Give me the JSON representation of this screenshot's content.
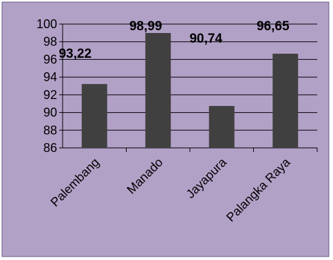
{
  "colors": {
    "background": "#b2a1c7",
    "plot_background": "#b2a1c7",
    "bar": "#404040",
    "gridline": "#000000",
    "text": "#000000"
  },
  "chart_data": {
    "type": "bar",
    "categories": [
      "Palembang",
      "Manado",
      "Jayapura",
      "Palangka Raya"
    ],
    "values": [
      93.22,
      98.99,
      90.74,
      96.65
    ],
    "value_labels": [
      "93,22",
      "98,99",
      "90,74",
      "96,65"
    ],
    "y_ticks": [
      "86",
      "88",
      "90",
      "92",
      "94",
      "96",
      "98",
      "100"
    ],
    "ylim": [
      86,
      100
    ],
    "grid": true,
    "legend": "none",
    "title": "",
    "xlabel": "",
    "ylabel": ""
  }
}
